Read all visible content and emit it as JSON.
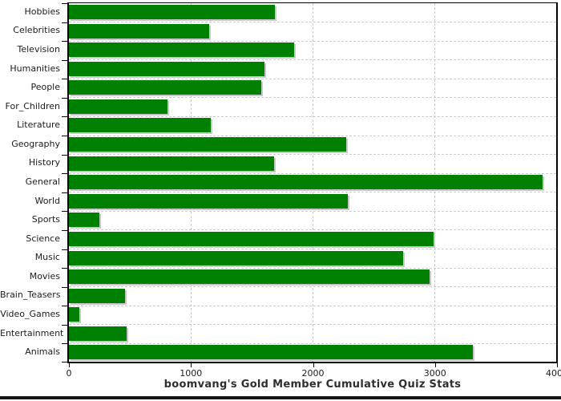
{
  "chart_data": {
    "type": "bar",
    "orientation": "horizontal",
    "title": "boomvang's Gold Member Cumulative Quiz Stats",
    "categories": [
      "Hobbies",
      "Celebrities",
      "Television",
      "Humanities",
      "People",
      "For_Children",
      "Literature",
      "Geography",
      "History",
      "General",
      "World",
      "Sports",
      "Science",
      "Music",
      "Movies",
      "Brain_Teasers",
      "Video_Games",
      "Entertainment",
      "Animals"
    ],
    "values": [
      1690,
      1150,
      1845,
      1600,
      1575,
      810,
      1165,
      2270,
      1680,
      3880,
      2285,
      250,
      2990,
      2740,
      2955,
      460,
      85,
      475,
      3310
    ],
    "xlabel": "",
    "ylabel": "",
    "xlim": [
      0,
      4000
    ],
    "x_ticks": [
      0,
      1000,
      2000,
      3000,
      4000
    ],
    "grid": "dashed",
    "legend": "none",
    "colors": {
      "bar": "#008000",
      "bar_shadow": "#c8c8c8",
      "grid": "#c9ccd0",
      "axis": "#000000",
      "tick_label": "#1c1c1c",
      "title": "#2e2e2e",
      "page_strip": "#161616"
    }
  }
}
